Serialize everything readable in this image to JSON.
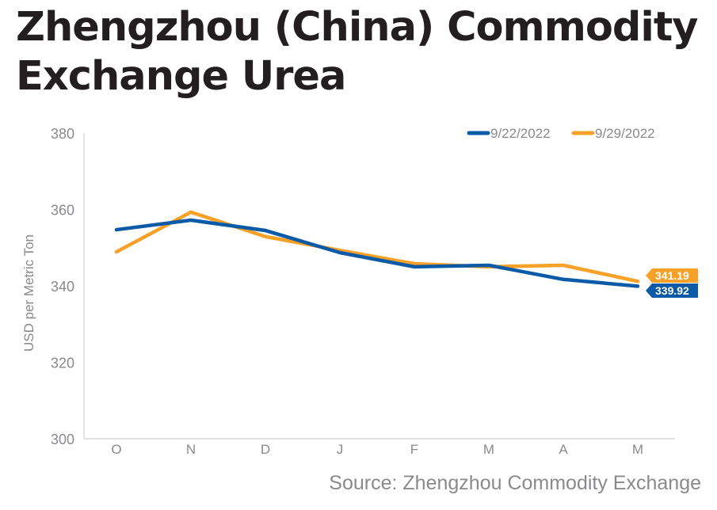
{
  "title": "Zhengzhou (China) Commodity Exchange Urea",
  "source": "Source: Zhengzhou Commodity Exchange",
  "chart_data": {
    "type": "line",
    "title": "Zhengzhou (China) Commodity Exchange Urea",
    "xlabel": "",
    "ylabel": "USD per Metric Ton",
    "ylim": [
      300,
      380
    ],
    "yticks": [
      300,
      320,
      340,
      360,
      380
    ],
    "categories": [
      "O",
      "N",
      "D",
      "J",
      "F",
      "M",
      "A",
      "M"
    ],
    "grid": false,
    "legend_position": "top-right",
    "series": [
      {
        "name": "9/22/2022",
        "color": "#0a5aa8",
        "values": [
          354.7,
          357.2,
          354.5,
          348.7,
          345.0,
          345.4,
          341.7,
          339.92
        ],
        "end_label": "339.92"
      },
      {
        "name": "9/29/2022",
        "color": "#f7a128",
        "values": [
          348.9,
          359.3,
          352.9,
          349.3,
          345.8,
          345.0,
          345.4,
          341.19
        ],
        "end_label": "341.19"
      }
    ]
  }
}
